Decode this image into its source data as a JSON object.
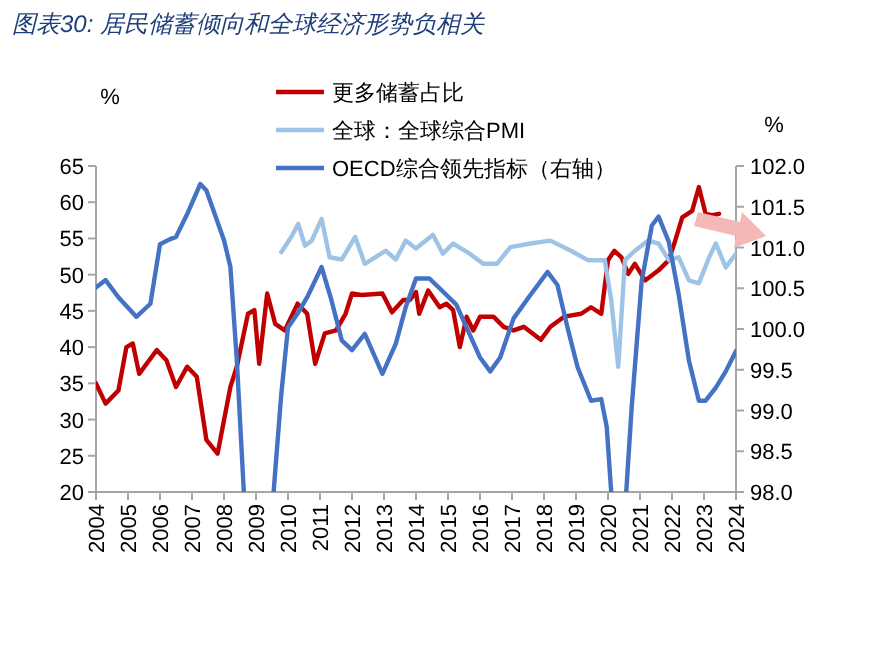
{
  "chart_data": {
    "type": "line",
    "title": "图表30: 居民储蓄倾向和全球经济形势负相关",
    "ylabel": "%",
    "y2label": "%",
    "xlim": [
      2004,
      2024
    ],
    "xticks": [
      2004,
      2005,
      2006,
      2007,
      2008,
      2009,
      2010,
      2011,
      2012,
      2013,
      2014,
      2015,
      2016,
      2017,
      2018,
      2019,
      2020,
      2021,
      2022,
      2023,
      2024
    ],
    "ylim": [
      20,
      65
    ],
    "yticks": [
      20,
      25,
      30,
      35,
      40,
      45,
      50,
      55,
      60,
      65
    ],
    "y2lim": [
      98,
      102
    ],
    "y2ticks": [
      {
        "value": 98,
        "label": "98.0"
      },
      {
        "value": 98.5,
        "label": "98.5"
      },
      {
        "value": 99,
        "label": "99.0"
      },
      {
        "value": 99.5,
        "label": "99.5"
      },
      {
        "value": 100,
        "label": "100.0"
      },
      {
        "value": 100.5,
        "label": "100.5"
      },
      {
        "value": 101,
        "label": "101.0"
      },
      {
        "value": 101.5,
        "label": "101.5"
      },
      {
        "value": 102,
        "label": "102.0"
      }
    ],
    "legend": "top",
    "grid": false,
    "series": [
      {
        "name": "更多储蓄占比",
        "color": "#c00000",
        "x": [
          2004.0,
          2004.3,
          2004.7,
          2004.95,
          2005.15,
          2005.35,
          2005.9,
          2006.2,
          2006.5,
          2006.85,
          2007.15,
          2007.45,
          2007.8,
          2008.2,
          2008.4,
          2008.75,
          2008.95,
          2009.1,
          2009.35,
          2009.6,
          2009.9,
          2010.3,
          2010.6,
          2010.85,
          2011.15,
          2011.5,
          2011.8,
          2012.0,
          2012.3,
          2012.95,
          2013.25,
          2013.6,
          2013.8,
          2014.0,
          2014.1,
          2014.38,
          2014.74,
          2014.95,
          2015.16,
          2015.37,
          2015.58,
          2015.79,
          2016.0,
          2016.42,
          2016.74,
          2017.05,
          2017.37,
          2017.9,
          2018.2,
          2018.63,
          2019.16,
          2019.47,
          2019.79,
          2020.0,
          2020.2,
          2020.42,
          2020.63,
          2020.84,
          2021.16,
          2021.58,
          2021.9,
          2022.1,
          2022.32,
          2022.63,
          2022.84,
          2023.05,
          2023.26,
          2023.47
        ],
        "values": [
          35.0,
          32.2,
          34,
          40,
          40.5,
          36.3,
          39.6,
          38.2,
          34.5,
          37.3,
          35.9,
          27.2,
          25.3,
          34.5,
          37.3,
          44.6,
          45.1,
          37.7,
          47.4,
          43.2,
          42.3,
          46,
          44.6,
          37.7,
          41.9,
          42.3,
          44.6,
          47.4,
          47.2,
          47.4,
          44.8,
          46.5,
          46.5,
          47.6,
          44.6,
          47.8,
          45.5,
          46,
          45.1,
          40.0,
          44.2,
          42.3,
          44.2,
          44.2,
          42.8,
          42.3,
          42.8,
          41,
          42.8,
          44.2,
          44.6,
          45.5,
          44.6,
          52,
          53.3,
          52.4,
          50.1,
          51.5,
          49.2,
          50.6,
          52,
          54.7,
          57.9,
          58.8,
          62.1,
          58.4,
          58.2,
          58.4
        ]
      },
      {
        "name": "全球：全球综合PMI",
        "color": "#9dc3e6",
        "x": [
          2009.79,
          2010.1,
          2010.32,
          2010.53,
          2010.74,
          2011.05,
          2011.3,
          2011.68,
          2012.1,
          2012.4,
          2013.05,
          2013.37,
          2013.68,
          2014.0,
          2014.53,
          2014.84,
          2015.16,
          2015.68,
          2016.1,
          2016.53,
          2016.95,
          2017.58,
          2018.2,
          2018.84,
          2019.37,
          2019.9,
          2020.1,
          2020.32,
          2020.53,
          2020.84,
          2021.26,
          2021.58,
          2021.9,
          2022.21,
          2022.53,
          2022.84,
          2023.16,
          2023.37,
          2023.68,
          2024.0
        ],
        "values": [
          53.1,
          55.2,
          57,
          54,
          54.7,
          57.7,
          52.4,
          52.1,
          55.2,
          51.5,
          53.3,
          52.1,
          54.7,
          53.6,
          55.5,
          52.9,
          54.3,
          52.9,
          51.5,
          51.5,
          53.8,
          54.3,
          54.7,
          53.3,
          52,
          52,
          46.5,
          37.3,
          52,
          53.3,
          54.7,
          54.3,
          52,
          52.4,
          49.2,
          48.8,
          52.4,
          54.3,
          51,
          52.9
        ]
      },
      {
        "name": "OECD综合领先指标（右轴）",
        "color": "#4472c4",
        "axis": "y2",
        "x": [
          2004.0,
          2004.3,
          2004.7,
          2005.26,
          2005.7,
          2006.0,
          2006.3,
          2006.5,
          2006.85,
          2007.26,
          2007.45,
          2008.0,
          2008.2,
          2008.4,
          2008.62,
          2009.1,
          2009.55,
          2009.79,
          2010.0,
          2010.3,
          2010.6,
          2011.05,
          2011.36,
          2011.68,
          2012.0,
          2012.4,
          2012.95,
          2013.37,
          2013.68,
          2014.0,
          2014.42,
          2014.84,
          2015.26,
          2015.68,
          2016.0,
          2016.32,
          2016.63,
          2017.05,
          2017.58,
          2018.11,
          2018.42,
          2018.74,
          2019.05,
          2019.47,
          2019.79,
          2019.96,
          2020.1,
          2020.35,
          2020.57,
          2020.74,
          2021.05,
          2021.37,
          2021.58,
          2021.9,
          2022.21,
          2022.53,
          2022.84,
          2023.05,
          2023.37,
          2023.68,
          2024.0
        ],
        "values": [
          100.51,
          100.6,
          100.39,
          100.15,
          100.31,
          101.04,
          101.1,
          101.13,
          101.41,
          101.78,
          101.7,
          101.09,
          100.76,
          99.62,
          98.0,
          null,
          98.0,
          99.2,
          100.02,
          100.19,
          100.39,
          100.76,
          100.35,
          99.86,
          99.74,
          99.94,
          99.45,
          99.82,
          100.27,
          100.62,
          100.62,
          100.46,
          100.3,
          99.93,
          99.65,
          99.48,
          99.65,
          100.13,
          100.42,
          100.7,
          100.54,
          100.01,
          99.53,
          99.12,
          99.14,
          98.8,
          98.0,
          null,
          98.0,
          99.04,
          100.58,
          101.27,
          101.38,
          101.07,
          100.42,
          99.61,
          99.12,
          99.12,
          99.28,
          99.48,
          99.73
        ]
      }
    ]
  }
}
